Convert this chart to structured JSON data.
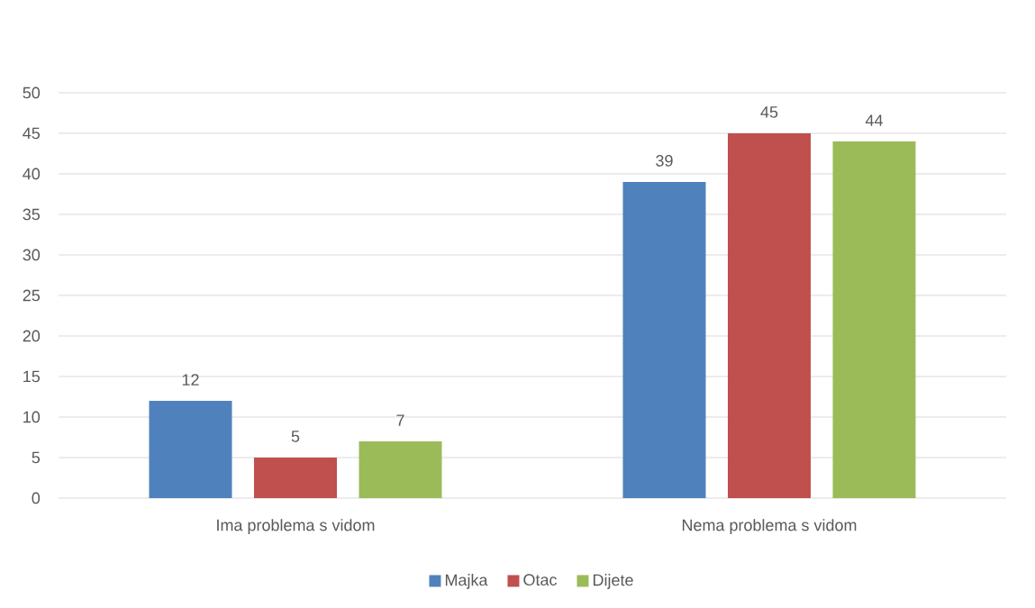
{
  "chart_data": {
    "type": "bar",
    "categories": [
      "Ima problema s vidom",
      "Nema problema s vidom"
    ],
    "series": [
      {
        "name": "Majka",
        "color": "#4f81bd",
        "values": [
          12,
          39
        ]
      },
      {
        "name": "Otac",
        "color": "#c0504d",
        "values": [
          5,
          45
        ]
      },
      {
        "name": "Dijete",
        "color": "#9bbb59",
        "values": [
          7,
          44
        ]
      }
    ],
    "ylim": [
      0,
      50
    ],
    "yticks": [
      0,
      5,
      10,
      15,
      20,
      25,
      30,
      35,
      40,
      45,
      50
    ],
    "grid": "y",
    "legend": "bottom",
    "data_labels": true
  }
}
